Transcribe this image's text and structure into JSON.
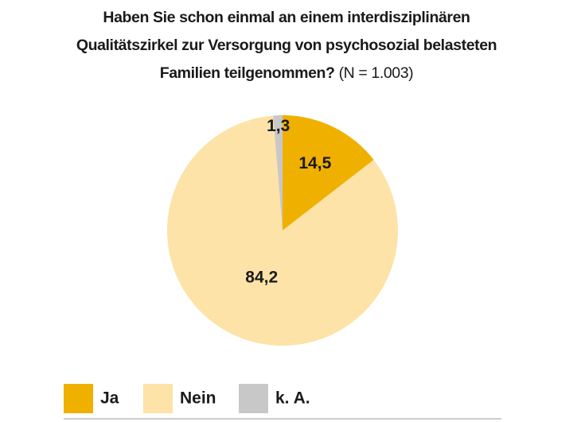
{
  "chart_data": {
    "type": "pie",
    "title": "Haben Sie schon einmal an einem interdisziplinären Qualitätszirkel zur Versorgung von psychosozial belasteten Familien teilgenommen?",
    "note": "(N = 1.003)",
    "categories": [
      "Ja",
      "Nein",
      "k. A."
    ],
    "values": [
      14.5,
      84.2,
      1.3
    ],
    "value_labels": [
      "14,5",
      "84,2",
      "1,3"
    ],
    "colors": [
      "#f0b000",
      "#fde3a7",
      "#c8c8c8"
    ],
    "legend": "bottom"
  }
}
